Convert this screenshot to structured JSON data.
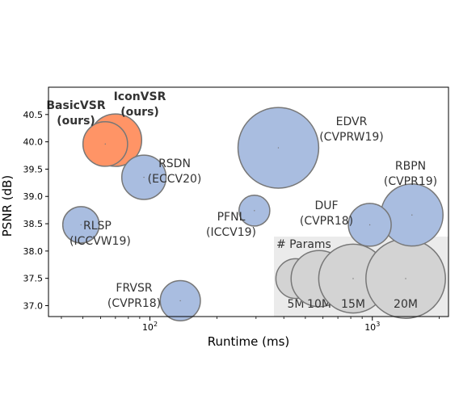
{
  "chart_data": {
    "type": "scatter",
    "bubble": true,
    "xlabel": "Runtime (ms)",
    "ylabel": "PSNR (dB)",
    "x_scale": "log",
    "xlim": [
      35,
      2200
    ],
    "ylim": [
      36.8,
      41.0
    ],
    "x_ticks": [
      {
        "value": 100,
        "label": "10²"
      },
      {
        "value": 1000,
        "label": "10³"
      }
    ],
    "y_ticks": [
      37.0,
      37.5,
      38.0,
      38.5,
      39.0,
      39.5,
      40.0,
      40.5
    ],
    "grid": false,
    "points": [
      {
        "name": "BasicVSR (ours)",
        "label": [
          "BasicVSR",
          "(ours)"
        ],
        "x": 63,
        "y": 39.96,
        "params_m": 6.3,
        "color": "#ff9466",
        "bold": true
      },
      {
        "name": "IconVSR (ours)",
        "label": [
          "IconVSR",
          "(ours)"
        ],
        "x": 70,
        "y": 40.03,
        "params_m": 8.7,
        "color": "#ff9466",
        "bold": true
      },
      {
        "name": "RSDN (ECCV20)",
        "label": [
          "RSDN",
          "(ECCV20)"
        ],
        "x": 94,
        "y": 39.35,
        "params_m": 6.2,
        "color": "#a9bde0"
      },
      {
        "name": "EDVR (CVPRW19)",
        "label": [
          "EDVR",
          "(CVPRW19)"
        ],
        "x": 378,
        "y": 39.89,
        "params_m": 20.6,
        "color": "#a9bde0"
      },
      {
        "name": "PFNL (ICCV19)",
        "label": [
          "PFNL",
          "(ICCV19)"
        ],
        "x": 295,
        "y": 38.74,
        "params_m": 3.0,
        "color": "#a9bde0"
      },
      {
        "name": "RBPN (CVPR19)",
        "label": [
          "RBPN",
          "(CVPR19)"
        ],
        "x": 1507,
        "y": 38.66,
        "params_m": 12.2,
        "color": "#a9bde0"
      },
      {
        "name": "DUF (CVPR18)",
        "label": [
          "DUF",
          "(CVPR18)"
        ],
        "x": 974,
        "y": 38.48,
        "params_m": 5.8,
        "color": "#a9bde0"
      },
      {
        "name": "RLSP (ICCVW19)",
        "label": [
          "RLSP",
          "(ICCVW19)"
        ],
        "x": 49,
        "y": 38.48,
        "params_m": 4.2,
        "color": "#a9bde0"
      },
      {
        "name": "FRVSR (CVPR18)",
        "label": [
          "FRVSR",
          "(CVPR18)"
        ],
        "x": 137,
        "y": 37.09,
        "params_m": 5.1,
        "color": "#a9bde0"
      }
    ],
    "legend": {
      "title": "# Params",
      "placement": "bottom-right",
      "entries": [
        {
          "label": "5M",
          "params_m": 5
        },
        {
          "label": "10M",
          "params_m": 10
        },
        {
          "label": "15M",
          "params_m": 15
        },
        {
          "label": "20M",
          "params_m": 20
        }
      ],
      "color": "#d3d3d3"
    }
  }
}
